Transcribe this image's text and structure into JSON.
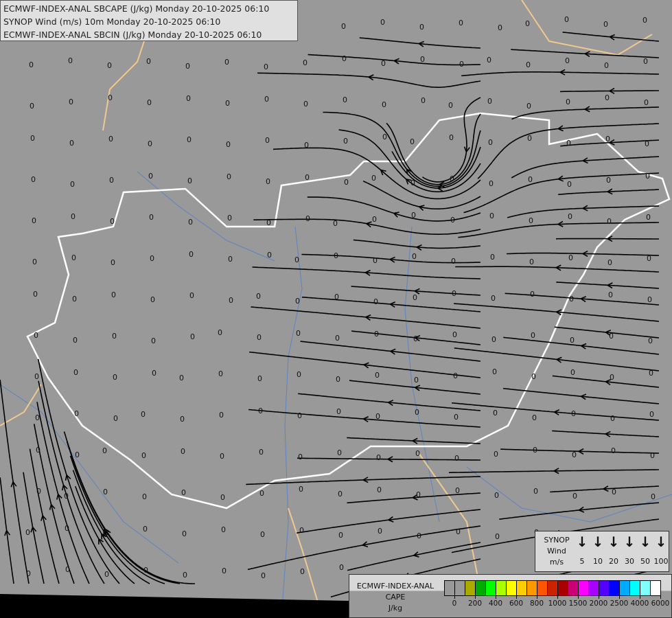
{
  "header": {
    "lines": [
      "ECMWF-INDEX-ANAL SBCAPE (J/kg) Monday 20-10-2025 06:10",
      "SYNOP Wind (m/s) 10m Monday 20-10-2025 06:10",
      "ECMWF-INDEX-ANAL SBCIN (J/kg) Monday 20-10-2025 06:10"
    ]
  },
  "map": {
    "cape_field_value": "0",
    "colors": {
      "background": "#999999",
      "streamline": "#000000",
      "national_border": "#ffffff",
      "other_border": "#f0c890",
      "river": "#4a7fd0"
    }
  },
  "wind_legend": {
    "title_lines": [
      "SYNOP",
      "Wind",
      "m/s"
    ],
    "speeds": [
      "5",
      "10",
      "20",
      "30",
      "50",
      "100"
    ],
    "icon": "down-arrow-icon"
  },
  "cape_legend": {
    "title_lines": [
      "ECMWF-INDEX-ANAL",
      "CAPE",
      "J/kg"
    ],
    "colors": [
      "#999999",
      "#999999",
      "#aaaa00",
      "#00aa00",
      "#00ff00",
      "#aaff00",
      "#ffff00",
      "#ffcc00",
      "#ff9900",
      "#ff5500",
      "#cc2200",
      "#aa0000",
      "#cc0077",
      "#ff00ff",
      "#aa00ff",
      "#5500ff",
      "#0000ff",
      "#00aaff",
      "#00ffff",
      "#80ffff",
      "#ffffff"
    ],
    "tick_labels": [
      "0",
      "200",
      "400",
      "600",
      "800",
      "1000",
      "1500",
      "2000",
      "2500",
      "4000",
      "6000"
    ]
  }
}
